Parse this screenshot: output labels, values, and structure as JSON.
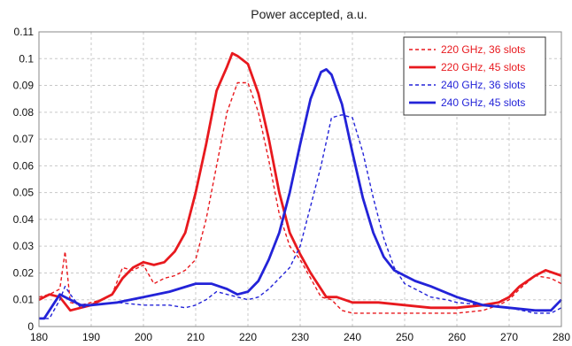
{
  "chart_data": {
    "type": "line",
    "title": "Power accepted, a.u.",
    "xlabel": "",
    "ylabel": "",
    "xlim": [
      180,
      280
    ],
    "ylim": [
      0,
      0.11
    ],
    "x_ticks": [
      "180",
      "190",
      "200",
      "210",
      "220",
      "230",
      "240",
      "250",
      "260",
      "270",
      "280"
    ],
    "y_ticks": [
      "0",
      "0.01",
      "0.02",
      "0.03",
      "0.04",
      "0.05",
      "0.06",
      "0.07",
      "0.08",
      "0.09",
      "0.1",
      "0.11"
    ],
    "grid": true,
    "legend_position": "top-right",
    "series": [
      {
        "name": "220 GHz, 36 slots",
        "color": "#e8191e",
        "style": "dashed",
        "points": [
          [
            180,
            0.011
          ],
          [
            182,
            0.012
          ],
          [
            184,
            0.014
          ],
          [
            185,
            0.028
          ],
          [
            186,
            0.009
          ],
          [
            188,
            0.008
          ],
          [
            190,
            0.009
          ],
          [
            192,
            0.01
          ],
          [
            194,
            0.012
          ],
          [
            196,
            0.022
          ],
          [
            198,
            0.021
          ],
          [
            200,
            0.023
          ],
          [
            202,
            0.016
          ],
          [
            204,
            0.018
          ],
          [
            206,
            0.019
          ],
          [
            208,
            0.021
          ],
          [
            210,
            0.025
          ],
          [
            212,
            0.04
          ],
          [
            214,
            0.06
          ],
          [
            216,
            0.08
          ],
          [
            218,
            0.091
          ],
          [
            220,
            0.091
          ],
          [
            222,
            0.08
          ],
          [
            224,
            0.062
          ],
          [
            226,
            0.042
          ],
          [
            228,
            0.03
          ],
          [
            230,
            0.025
          ],
          [
            232,
            0.018
          ],
          [
            234,
            0.011
          ],
          [
            236,
            0.01
          ],
          [
            238,
            0.006
          ],
          [
            240,
            0.005
          ],
          [
            245,
            0.005
          ],
          [
            250,
            0.005
          ],
          [
            255,
            0.005
          ],
          [
            260,
            0.005
          ],
          [
            265,
            0.006
          ],
          [
            268,
            0.008
          ],
          [
            270,
            0.01
          ],
          [
            272,
            0.014
          ],
          [
            275,
            0.019
          ],
          [
            278,
            0.018
          ],
          [
            280,
            0.016
          ]
        ]
      },
      {
        "name": "220 GHz, 45 slots",
        "color": "#e8191e",
        "style": "solid",
        "points": [
          [
            180,
            0.01
          ],
          [
            182,
            0.012
          ],
          [
            184,
            0.011
          ],
          [
            186,
            0.006
          ],
          [
            188,
            0.007
          ],
          [
            190,
            0.008
          ],
          [
            192,
            0.01
          ],
          [
            194,
            0.012
          ],
          [
            196,
            0.018
          ],
          [
            198,
            0.022
          ],
          [
            200,
            0.024
          ],
          [
            202,
            0.023
          ],
          [
            204,
            0.024
          ],
          [
            206,
            0.028
          ],
          [
            208,
            0.035
          ],
          [
            210,
            0.05
          ],
          [
            212,
            0.068
          ],
          [
            214,
            0.088
          ],
          [
            216,
            0.097
          ],
          [
            217,
            0.102
          ],
          [
            218,
            0.101
          ],
          [
            220,
            0.098
          ],
          [
            222,
            0.087
          ],
          [
            224,
            0.07
          ],
          [
            226,
            0.05
          ],
          [
            228,
            0.035
          ],
          [
            230,
            0.027
          ],
          [
            232,
            0.02
          ],
          [
            234,
            0.014
          ],
          [
            235,
            0.011
          ],
          [
            237,
            0.011
          ],
          [
            240,
            0.009
          ],
          [
            245,
            0.009
          ],
          [
            250,
            0.008
          ],
          [
            255,
            0.007
          ],
          [
            260,
            0.007
          ],
          [
            265,
            0.008
          ],
          [
            268,
            0.009
          ],
          [
            270,
            0.011
          ],
          [
            272,
            0.015
          ],
          [
            275,
            0.019
          ],
          [
            277,
            0.021
          ],
          [
            280,
            0.019
          ]
        ]
      },
      {
        "name": "240 GHz, 36 slots",
        "color": "#2323d8",
        "style": "dashed",
        "points": [
          [
            180,
            0.003
          ],
          [
            182,
            0.003
          ],
          [
            184,
            0.01
          ],
          [
            185,
            0.015
          ],
          [
            186,
            0.012
          ],
          [
            188,
            0.007
          ],
          [
            190,
            0.008
          ],
          [
            195,
            0.009
          ],
          [
            200,
            0.008
          ],
          [
            205,
            0.008
          ],
          [
            208,
            0.007
          ],
          [
            210,
            0.008
          ],
          [
            212,
            0.01
          ],
          [
            214,
            0.013
          ],
          [
            216,
            0.012
          ],
          [
            218,
            0.011
          ],
          [
            220,
            0.01
          ],
          [
            222,
            0.011
          ],
          [
            224,
            0.014
          ],
          [
            226,
            0.018
          ],
          [
            228,
            0.022
          ],
          [
            230,
            0.03
          ],
          [
            232,
            0.045
          ],
          [
            234,
            0.06
          ],
          [
            236,
            0.078
          ],
          [
            238,
            0.079
          ],
          [
            240,
            0.078
          ],
          [
            242,
            0.065
          ],
          [
            244,
            0.048
          ],
          [
            246,
            0.033
          ],
          [
            248,
            0.022
          ],
          [
            250,
            0.016
          ],
          [
            252,
            0.014
          ],
          [
            255,
            0.011
          ],
          [
            258,
            0.01
          ],
          [
            260,
            0.009
          ],
          [
            265,
            0.008
          ],
          [
            270,
            0.007
          ],
          [
            275,
            0.005
          ],
          [
            278,
            0.005
          ],
          [
            280,
            0.007
          ]
        ]
      },
      {
        "name": "240 GHz, 45 slots",
        "color": "#2323d8",
        "style": "solid",
        "points": [
          [
            180,
            0.003
          ],
          [
            181,
            0.003
          ],
          [
            184,
            0.012
          ],
          [
            186,
            0.01
          ],
          [
            188,
            0.008
          ],
          [
            190,
            0.008
          ],
          [
            195,
            0.009
          ],
          [
            200,
            0.011
          ],
          [
            205,
            0.013
          ],
          [
            210,
            0.016
          ],
          [
            213,
            0.016
          ],
          [
            216,
            0.014
          ],
          [
            218,
            0.012
          ],
          [
            220,
            0.013
          ],
          [
            222,
            0.017
          ],
          [
            224,
            0.025
          ],
          [
            226,
            0.035
          ],
          [
            228,
            0.05
          ],
          [
            230,
            0.068
          ],
          [
            232,
            0.085
          ],
          [
            234,
            0.095
          ],
          [
            235,
            0.096
          ],
          [
            236,
            0.094
          ],
          [
            238,
            0.083
          ],
          [
            240,
            0.065
          ],
          [
            242,
            0.048
          ],
          [
            244,
            0.035
          ],
          [
            246,
            0.026
          ],
          [
            248,
            0.021
          ],
          [
            250,
            0.019
          ],
          [
            252,
            0.017
          ],
          [
            255,
            0.015
          ],
          [
            260,
            0.011
          ],
          [
            265,
            0.008
          ],
          [
            270,
            0.007
          ],
          [
            275,
            0.006
          ],
          [
            278,
            0.006
          ],
          [
            280,
            0.01
          ]
        ]
      }
    ]
  }
}
